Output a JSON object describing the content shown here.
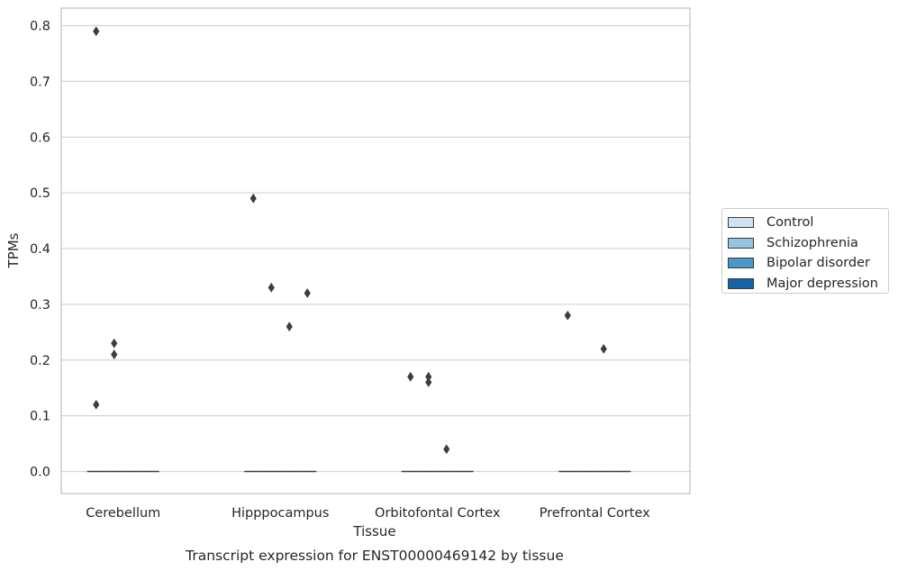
{
  "chart_data": {
    "type": "box",
    "xlabel": "Tissue",
    "ylabel": "TPMs",
    "caption": "Transcript expression for ENST00000469142 by tissue",
    "ylim": [
      -0.04,
      0.83
    ],
    "yticks": [
      "0.0",
      "0.1",
      "0.2",
      "0.3",
      "0.4",
      "0.5",
      "0.6",
      "0.7",
      "0.8"
    ],
    "categories": [
      "Cerebellum",
      "Hipppocampus",
      "Orbitofontal Cortex",
      "Prefrontal Cortex"
    ],
    "grid": "horizontal",
    "legend_position": "right",
    "series": [
      {
        "name": "Control",
        "color": "#d0e1f2"
      },
      {
        "name": "Schizophrenia",
        "color": "#94c4df"
      },
      {
        "name": "Bipolar disorder",
        "color": "#4a98c9"
      },
      {
        "name": "Major depression",
        "color": "#1764ab"
      }
    ],
    "medians": [
      [
        0,
        0,
        0,
        0
      ],
      [
        0,
        0,
        0,
        0
      ],
      [
        0,
        0,
        0,
        0
      ],
      [
        0,
        0,
        0,
        0
      ]
    ],
    "outliers": [
      {
        "category": "Cerebellum",
        "series": "Control",
        "values": [
          0.79,
          0.12
        ]
      },
      {
        "category": "Cerebellum",
        "series": "Schizophrenia",
        "values": [
          0.23,
          0.21
        ]
      },
      {
        "category": "Hipppocampus",
        "series": "Control",
        "values": [
          0.49
        ]
      },
      {
        "category": "Hipppocampus",
        "series": "Schizophrenia",
        "values": [
          0.33
        ]
      },
      {
        "category": "Hipppocampus",
        "series": "Bipolar disorder",
        "values": [
          0.26
        ]
      },
      {
        "category": "Hipppocampus",
        "series": "Major depression",
        "values": [
          0.32
        ]
      },
      {
        "category": "Orbitofontal Cortex",
        "series": "Control",
        "values": [
          0.17
        ]
      },
      {
        "category": "Orbitofontal Cortex",
        "series": "Schizophrenia",
        "values": [
          0.17,
          0.16
        ]
      },
      {
        "category": "Orbitofontal Cortex",
        "series": "Bipolar disorder",
        "values": [
          0.04
        ]
      },
      {
        "category": "Prefrontal Cortex",
        "series": "Control",
        "values": [
          0.28
        ]
      },
      {
        "category": "Prefrontal Cortex",
        "series": "Bipolar disorder",
        "values": [
          0.22
        ]
      }
    ]
  }
}
